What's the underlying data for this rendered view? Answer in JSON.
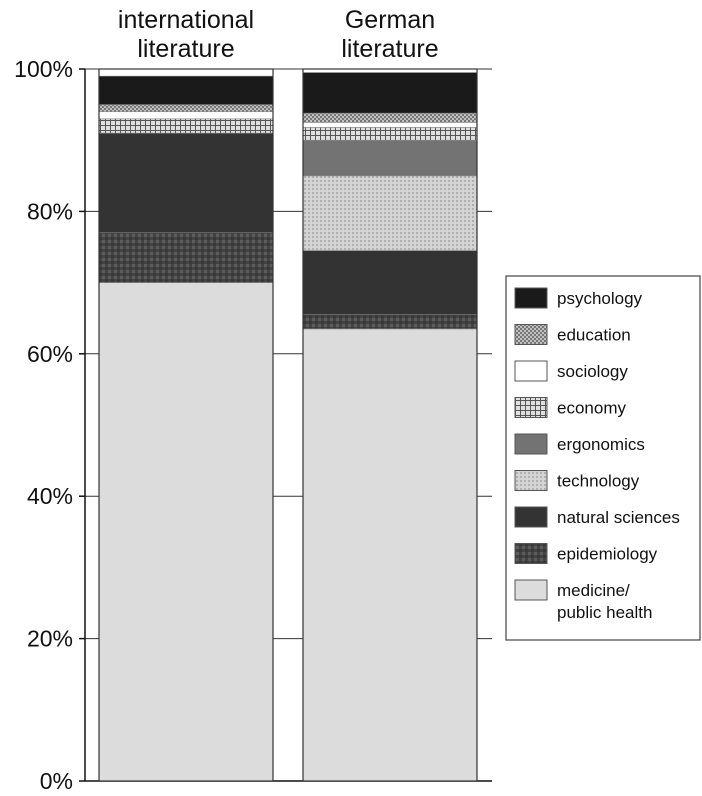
{
  "chart_data": {
    "type": "bar",
    "stacked": true,
    "normalized": true,
    "categories": [
      "international\nliterature",
      "German\nliterature"
    ],
    "y_ticks": [
      "0%",
      "20%",
      "40%",
      "60%",
      "80%",
      "100%"
    ],
    "ylim": [
      0,
      100
    ],
    "grid": true,
    "legend_position": "right",
    "series": [
      {
        "name": "medicine/\npublic health",
        "values": [
          70,
          63.5
        ],
        "pattern": "light"
      },
      {
        "name": "epidemiology",
        "values": [
          7,
          2
        ],
        "pattern": "dark-check"
      },
      {
        "name": "natural sciences",
        "values": [
          14,
          9
        ],
        "pattern": "dark"
      },
      {
        "name": "technology",
        "values": [
          0,
          10.5
        ],
        "pattern": "light-dots"
      },
      {
        "name": "ergonomics",
        "values": [
          0,
          5
        ],
        "pattern": "mid"
      },
      {
        "name": "economy",
        "values": [
          2,
          1.8
        ],
        "pattern": "grid"
      },
      {
        "name": "sociology",
        "values": [
          1,
          0.7
        ],
        "pattern": "white"
      },
      {
        "name": "education",
        "values": [
          1,
          1.3
        ],
        "pattern": "dots"
      },
      {
        "name": "psychology",
        "values": [
          4,
          5.7
        ],
        "pattern": "black"
      }
    ],
    "legend_order": [
      "psychology",
      "education",
      "sociology",
      "economy",
      "ergonomics",
      "technology",
      "natural sciences",
      "epidemiology",
      "medicine/\npublic health"
    ],
    "colors": {
      "light": "#dcdcdc",
      "dark-check": "#4a4a4a",
      "dark": "#333333",
      "light-dots": "#c8c8c8",
      "mid": "#737373",
      "grid": "#9a9a9a",
      "white": "#ffffff",
      "dots": "#a6a6a6",
      "black": "#1a1a1a"
    }
  }
}
